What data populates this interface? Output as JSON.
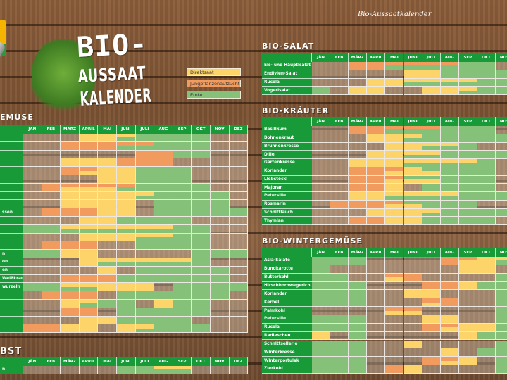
{
  "colors": {
    "D": "#fdd46a",
    "J": "#f19b5f",
    "E": "#86c17a",
    "header": "#179a37"
  },
  "header": {
    "script_title": "Bio-Aussaatkalender"
  },
  "title": {
    "line1": "BIO-",
    "line2": "AUSSAAT",
    "line3": "KALENDER"
  },
  "legend": [
    {
      "code": "D",
      "label": "Direktsaat"
    },
    {
      "code": "J",
      "label": "Jungpflanzenaufzucht"
    },
    {
      "code": "E",
      "label": "Ernte"
    }
  ],
  "tables": {
    "gemuese": {
      "title": "EMÜSE",
      "months": [
        "JÄN",
        "FEB",
        "MÄRZ",
        "APRIL",
        "MAI",
        "JUNI",
        "JULI",
        "AUG",
        "SEP",
        "OKT",
        "NOV",
        "DEZ"
      ],
      "rows": [
        {
          "label": "",
          "cells": [
            "",
            "",
            "",
            "D",
            "D",
            "D/E",
            "E",
            "E",
            "E",
            "E",
            "",
            ""
          ]
        },
        {
          "label": "",
          "cells": [
            "",
            "",
            "J",
            "J",
            "J",
            "J/E",
            "J/E",
            "E",
            "E",
            "E",
            "",
            ""
          ]
        },
        {
          "label": "",
          "cells": [
            "",
            "",
            "",
            "",
            "",
            "",
            "J",
            "J",
            "E",
            "E",
            "",
            ""
          ]
        },
        {
          "label": "",
          "cells": [
            "",
            "",
            "D",
            "D",
            "D",
            "J",
            "J",
            "J",
            "",
            "",
            "",
            ""
          ]
        },
        {
          "label": "",
          "cells": [
            "",
            "",
            "J",
            "J/D",
            "D",
            "D",
            "E",
            "E",
            "E",
            "",
            "",
            ""
          ]
        },
        {
          "label": "",
          "cells": [
            "",
            "",
            "",
            "",
            "D",
            "D",
            "E",
            "E",
            "E",
            "",
            "",
            ""
          ]
        },
        {
          "label": "",
          "cells": [
            "",
            "J",
            "J/D",
            "J/D",
            "J/D",
            "J/E",
            "E",
            "E",
            "E",
            "E",
            "",
            ""
          ]
        },
        {
          "label": "",
          "cells": [
            "",
            "",
            "D",
            "D",
            "D",
            "D",
            "D/E",
            "E",
            "E",
            "E",
            "E",
            ""
          ]
        },
        {
          "label": "",
          "cells": [
            "",
            "",
            "D",
            "D",
            "D",
            "D",
            "",
            "E",
            "E",
            "E",
            "E",
            ""
          ]
        },
        {
          "label": "ssen",
          "cells": [
            "",
            "J",
            "J",
            "J",
            "D",
            "D",
            "",
            "E",
            "E",
            "E",
            "E",
            "E"
          ]
        },
        {
          "label": "",
          "cells": [
            "",
            "",
            "",
            "D",
            "D",
            "E",
            "E",
            "E",
            "E",
            "",
            "",
            ""
          ]
        },
        {
          "label": "",
          "cells": [
            "E",
            "E",
            "D/E",
            "D/E",
            "D/E",
            "D/E",
            "D/E",
            "D/E",
            "E",
            "E",
            "",
            ""
          ]
        },
        {
          "label": "",
          "cells": [
            "",
            "",
            "",
            "D",
            "D",
            "D",
            "D/E",
            "D/E",
            "E",
            "E",
            "",
            ""
          ]
        },
        {
          "label": "",
          "cells": [
            "",
            "J",
            "J",
            "J",
            "",
            "",
            "E",
            "E",
            "E",
            "E",
            "",
            ""
          ]
        },
        {
          "label": "n",
          "cells": [
            "E",
            "E",
            "D",
            "D",
            "",
            "",
            "",
            "",
            "",
            "E",
            "E",
            "E"
          ]
        },
        {
          "label": "on",
          "cells": [
            "",
            "",
            "",
            "D",
            "D/E",
            "D/E",
            "D/E",
            "D/E",
            "D/E",
            "E",
            "",
            ""
          ]
        },
        {
          "label": "en",
          "cells": [
            "",
            "",
            "",
            "",
            "D",
            "",
            "E",
            "E",
            "E",
            "E",
            "E",
            ""
          ]
        },
        {
          "label": "Weißkraut",
          "cells": [
            "",
            "",
            "J",
            "J",
            "J",
            "E",
            "E",
            "E",
            "E",
            "E",
            "E",
            ""
          ]
        },
        {
          "label": "wurzeln",
          "cells": [
            "E",
            "E",
            "D/E",
            "D/E",
            "D",
            "D",
            "D",
            "",
            "E",
            "E",
            "E",
            "E"
          ]
        },
        {
          "label": "",
          "cells": [
            "",
            "J",
            "J",
            "J",
            "",
            "E",
            "E",
            "E",
            "E",
            "E",
            "E",
            ""
          ]
        },
        {
          "label": "",
          "cells": [
            "",
            "",
            "D",
            "D/E",
            "E",
            "E",
            "",
            "D",
            "E",
            "E",
            "",
            ""
          ]
        },
        {
          "label": "",
          "cells": [
            "",
            "",
            "J",
            "J",
            "",
            "E",
            "E",
            "E",
            "E",
            "E",
            "",
            ""
          ]
        },
        {
          "label": "",
          "cells": [
            "",
            "",
            "",
            "D",
            "D",
            "E",
            "E",
            "E",
            "E",
            "",
            "",
            ""
          ]
        },
        {
          "label": "",
          "cells": [
            "J",
            "J",
            "D",
            "D",
            "",
            "D",
            "D/E",
            "E",
            "E",
            "E",
            "",
            ""
          ]
        }
      ]
    },
    "obst": {
      "title": "BST",
      "months": [
        "JÄN",
        "FEB",
        "MÄRZ",
        "APRIL",
        "MAI",
        "JUNI",
        "JULI",
        "AUG",
        "SEP",
        "OKT",
        "NOV",
        "DEZ"
      ],
      "rows": [
        {
          "label": "n",
          "cells": [
            "",
            "",
            "",
            "",
            "",
            "E",
            "E",
            "D/E",
            "D/E",
            "",
            "",
            ""
          ]
        }
      ]
    },
    "salat": {
      "title": "BIO-SALAT",
      "months": [
        "JÄN",
        "FEB",
        "MÄRZ",
        "APRIL",
        "MAI",
        "JUNI",
        "JULI",
        "AUG",
        "SEP",
        "OKT",
        "NOV"
      ],
      "rows": [
        {
          "label": "Eis- und Häuptlsalat",
          "cells": [
            "",
            "",
            "J",
            "J",
            "J/E",
            "J/E",
            "J/E",
            "J/E",
            "E",
            "E",
            ""
          ]
        },
        {
          "label": "Endivien-Salat",
          "cells": [
            "",
            "",
            "",
            "",
            "",
            "D",
            "D",
            "E",
            "E",
            "E",
            "E"
          ]
        },
        {
          "label": "Rucola",
          "cells": [
            "",
            "",
            "",
            "D",
            "D",
            "D/E",
            "D/E",
            "D/E",
            "D/E",
            "E",
            "E"
          ]
        },
        {
          "label": "Vogerlsalat",
          "cells": [
            "E",
            "",
            "D",
            "D",
            "",
            "",
            "D",
            "D",
            "D/E",
            "E",
            "E"
          ]
        }
      ]
    },
    "kraeuter": {
      "title": "BIO-KRÄUTER",
      "months": [
        "JÄN",
        "FEB",
        "MÄRZ",
        "APRIL",
        "MAI",
        "JUNI",
        "JULI",
        "AUG",
        "SEP",
        "OKT",
        "NOV"
      ],
      "rows": [
        {
          "label": "Basilikum",
          "cells": [
            "",
            "",
            "J",
            "J",
            "J/E",
            "J/E",
            "J/E",
            "E",
            "E",
            "E",
            ""
          ]
        },
        {
          "label": "Bohnenkraut",
          "cells": [
            "",
            "",
            "",
            "D",
            "D",
            "D/E",
            "E",
            "E",
            "E",
            "E",
            "E"
          ]
        },
        {
          "label": "Brunnenkresse",
          "cells": [
            "",
            "",
            "",
            "",
            "D",
            "D",
            "D/E",
            "D/E",
            "E",
            "",
            ""
          ]
        },
        {
          "label": "Dille",
          "cells": [
            "",
            "",
            "",
            "D",
            "D",
            "D/E",
            "D/E",
            "E",
            "E",
            "E",
            "E"
          ]
        },
        {
          "label": "Gartenkresse",
          "cells": [
            "",
            "",
            "D",
            "D",
            "D",
            "D/E",
            "D/E",
            "D/E",
            "D/E",
            "E",
            ""
          ]
        },
        {
          "label": "Koriander",
          "cells": [
            "",
            "",
            "J",
            "J",
            "J/D",
            "D",
            "E/D",
            "E",
            "E",
            "E",
            ""
          ]
        },
        {
          "label": "Liebstöckl",
          "cells": [
            "",
            "",
            "J",
            "J",
            "J/D",
            "E/D",
            "E/D",
            "E",
            "E",
            "E",
            ""
          ]
        },
        {
          "label": "Majoran",
          "cells": [
            "",
            "",
            "J",
            "J",
            "D",
            "",
            "E",
            "E",
            "E",
            "E",
            ""
          ]
        },
        {
          "label": "Petersilie",
          "cells": [
            "",
            "",
            "D",
            "D",
            "D/E",
            "D/E",
            "D/E",
            "D/E",
            "E",
            "E",
            "E"
          ]
        },
        {
          "label": "Rosmarin",
          "cells": [
            "",
            "J",
            "J",
            "J",
            "J/D",
            "E/D",
            "E",
            "E",
            "E",
            "",
            ""
          ]
        },
        {
          "label": "Schnittlauch",
          "cells": [
            "",
            "",
            "",
            "D",
            "D",
            "D",
            "D/E",
            "E",
            "E",
            "E",
            "E"
          ]
        },
        {
          "label": "Thymian",
          "cells": [
            "",
            "",
            "J",
            "J",
            "D",
            "D",
            "E",
            "E",
            "E",
            "E",
            ""
          ]
        }
      ]
    },
    "winter": {
      "title": "BIO-WINTERGEMÜSE",
      "months": [
        "JÄN",
        "FEB",
        "MÄRZ",
        "APRIL",
        "MAI",
        "JUNI",
        "JULI",
        "AUG",
        "SEP",
        "OKT",
        "NOV"
      ],
      "rows": [
        {
          "label": "Asia-Salate",
          "cells": [
            "E",
            "E",
            "E",
            "",
            "",
            "",
            "",
            "J",
            "J/D",
            "D",
            "D/E"
          ]
        },
        {
          "label": "Bundkarotte",
          "cells": [
            "E",
            "",
            "",
            "",
            "",
            "",
            "",
            "",
            "D",
            "D",
            ""
          ]
        },
        {
          "label": "Butterkohl",
          "cells": [
            "E",
            "E",
            "",
            "",
            "J/D",
            "J",
            "",
            "",
            "",
            "",
            "E"
          ]
        },
        {
          "label": "Hirschhornwegerich",
          "cells": [
            "E",
            "E",
            "E",
            "",
            "",
            "",
            "J",
            "J",
            "D",
            "E",
            "E"
          ]
        },
        {
          "label": "Koriander",
          "cells": [
            "E",
            "E",
            "E",
            "",
            "",
            "D",
            "D",
            "",
            "",
            "",
            "E"
          ]
        },
        {
          "label": "Kerbel",
          "cells": [
            "E",
            "E",
            "E",
            "",
            "",
            "",
            "J/D",
            "J",
            "",
            "",
            "E"
          ]
        },
        {
          "label": "Palmkohl",
          "cells": [
            "",
            "",
            "",
            "",
            "J/D",
            "J/D",
            "",
            "",
            "",
            "",
            "E"
          ]
        },
        {
          "label": "Petersilie",
          "cells": [
            "E",
            "E",
            "E",
            "",
            "",
            "",
            "D",
            "D",
            "",
            "",
            "E"
          ]
        },
        {
          "label": "Rucola",
          "cells": [
            "E",
            "E",
            "E",
            "",
            "",
            "",
            "J",
            "J/D",
            "D",
            "D",
            "E"
          ]
        },
        {
          "label": "Radieschen",
          "cells": [
            "D",
            "",
            "E",
            "",
            "",
            "",
            "",
            "",
            "D",
            "E",
            "E"
          ]
        },
        {
          "label": "Schnittsellerie",
          "cells": [
            "E",
            "E",
            "E",
            "",
            "",
            "D",
            "",
            "",
            "",
            "",
            "E"
          ]
        },
        {
          "label": "Winterkresse",
          "cells": [
            "E",
            "E",
            "E",
            "",
            "",
            "",
            "",
            "D",
            "",
            "E",
            "E"
          ]
        },
        {
          "label": "Winterportulak",
          "cells": [
            "E",
            "E",
            "E",
            "",
            "",
            "",
            "J",
            "J/D",
            "D",
            "",
            "E"
          ]
        },
        {
          "label": "Zierkohl",
          "cells": [
            "E",
            "E",
            "E",
            "",
            "J",
            "D",
            "",
            "",
            "",
            "",
            "E"
          ]
        }
      ]
    }
  }
}
